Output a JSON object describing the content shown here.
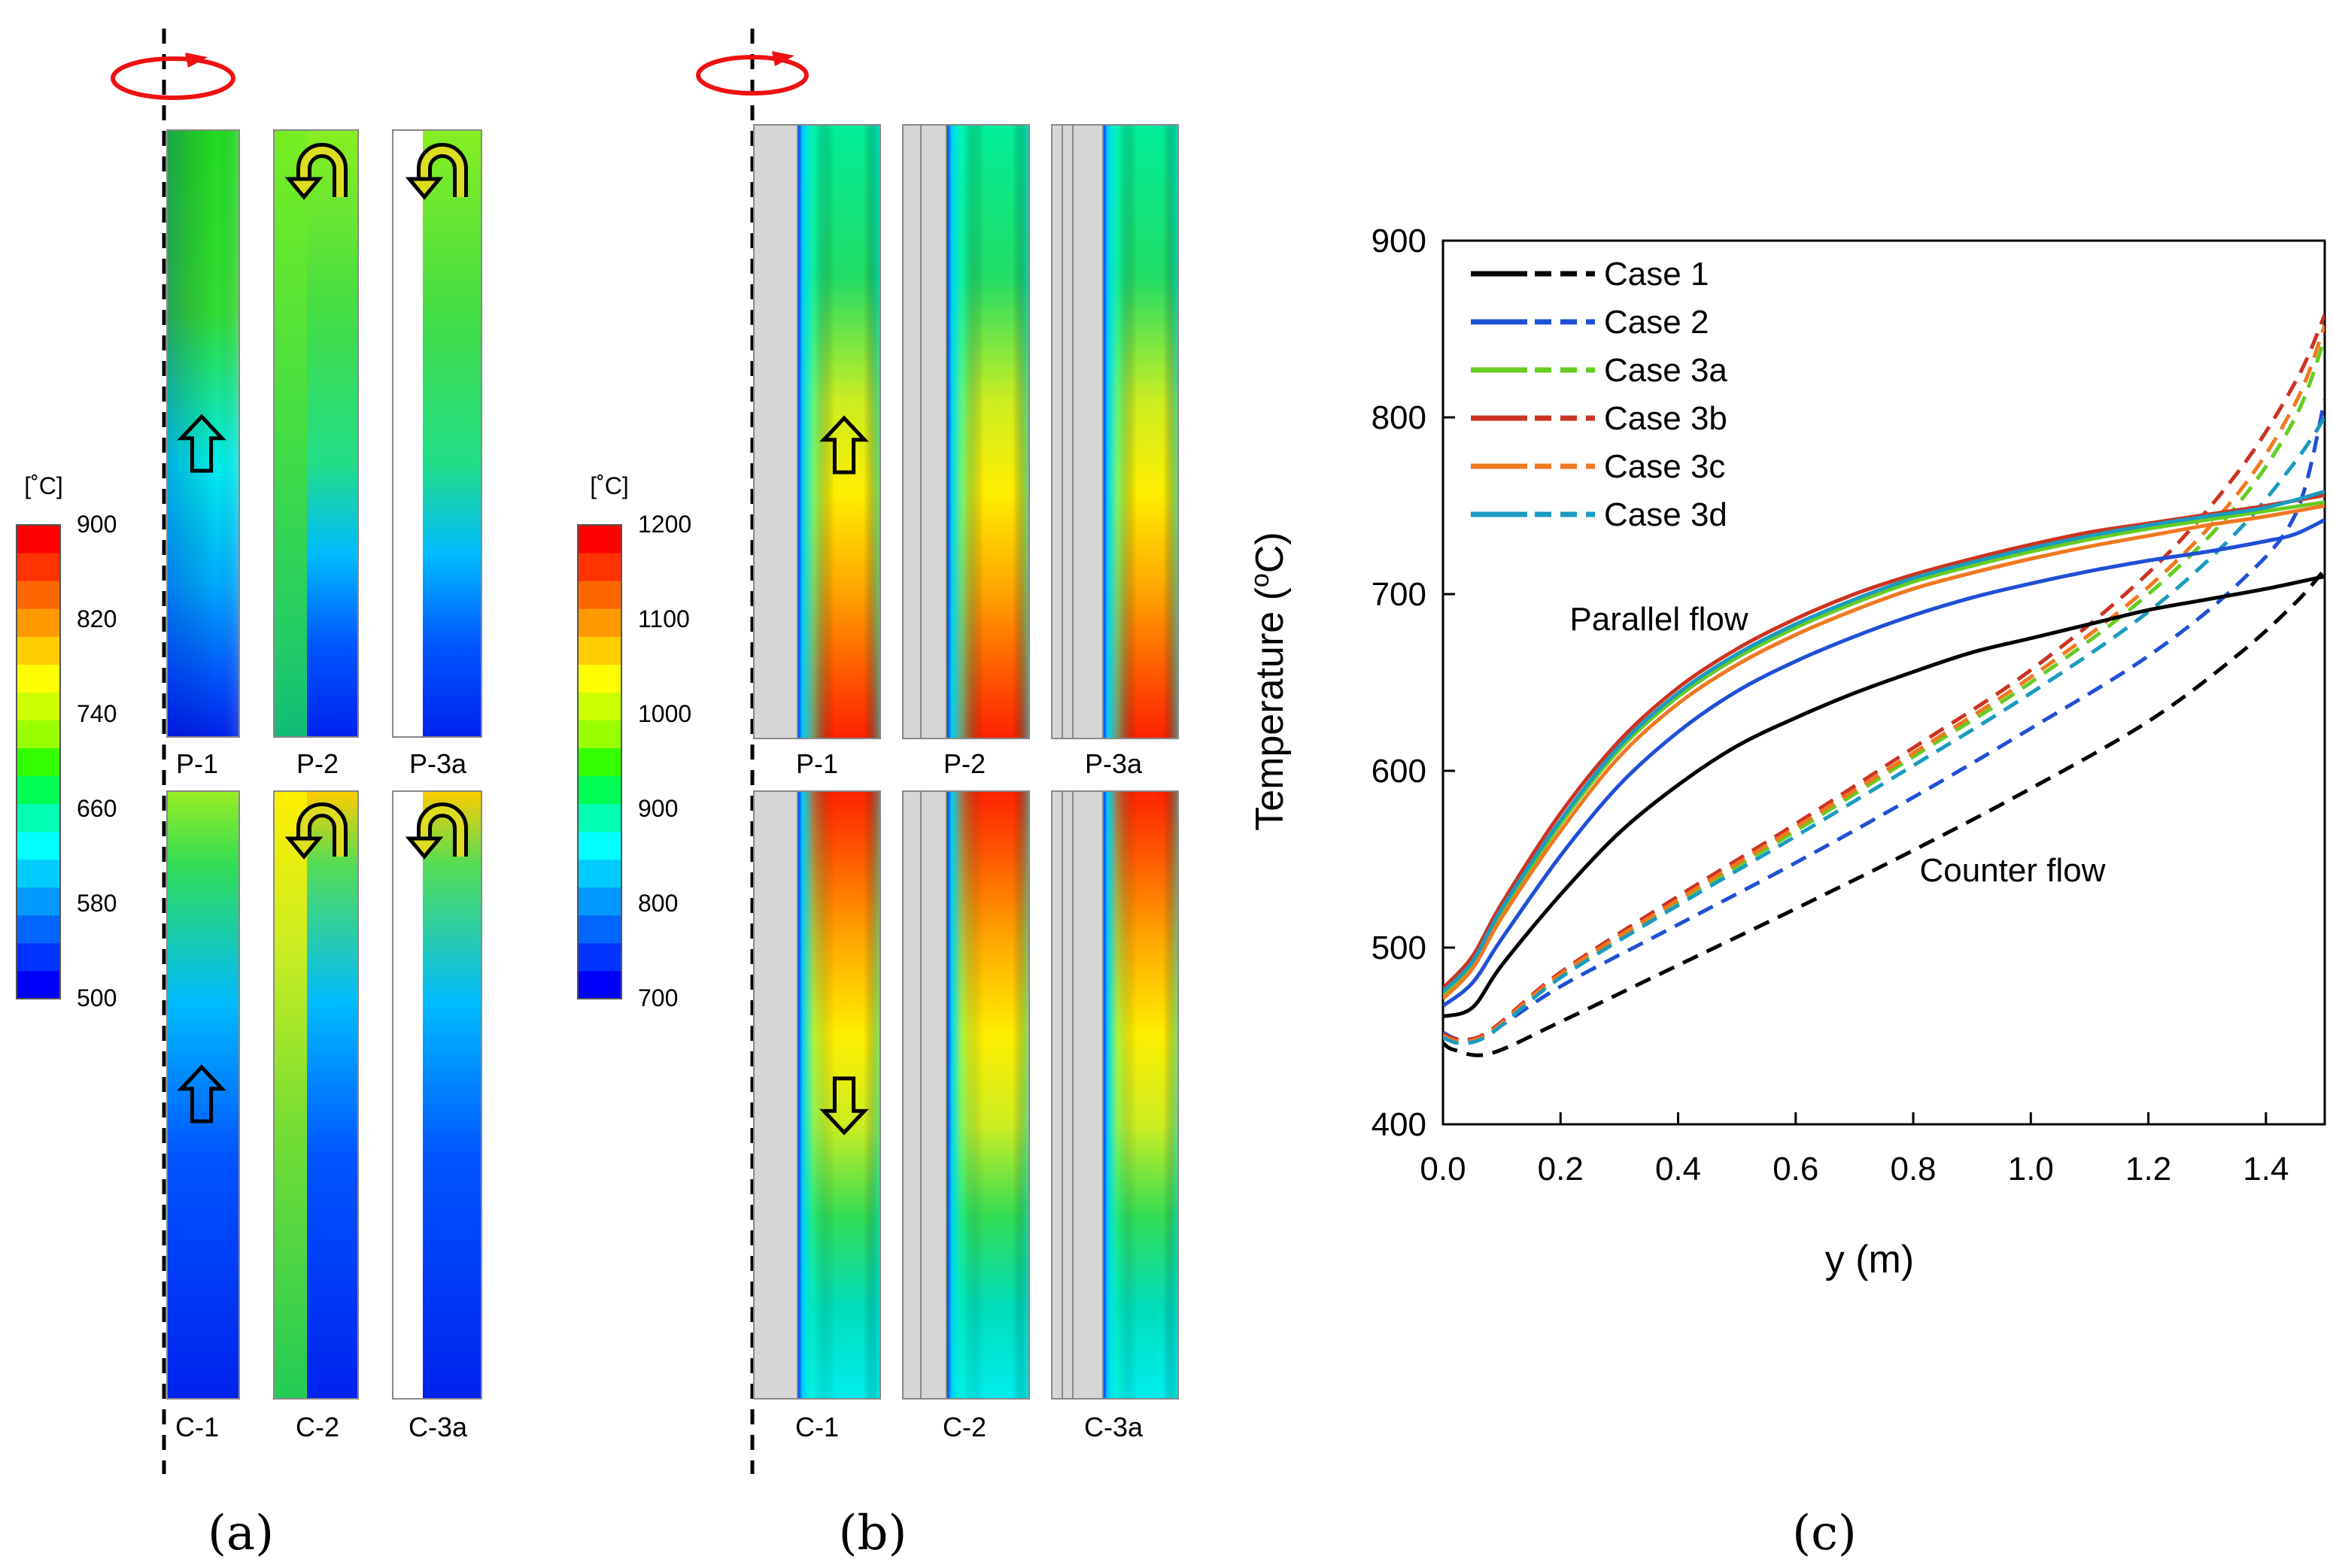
{
  "panels": {
    "a": {
      "tag": "(a)",
      "colorbar": {
        "unit": "[˚C]",
        "ticks": [
          "900",
          "820",
          "740",
          "660",
          "580",
          "500"
        ],
        "min": 500,
        "max": 900
      },
      "top_labels": [
        "P-1",
        "P-2",
        "P-3a"
      ],
      "bottom_labels": [
        "C-1",
        "C-2",
        "C-3a"
      ]
    },
    "b": {
      "tag": "(b)",
      "colorbar": {
        "unit": "[˚C]",
        "ticks": [
          "1200",
          "1100",
          "1000",
          "900",
          "800",
          "700"
        ],
        "min": 700,
        "max": 1200
      },
      "top_labels": [
        "P-1",
        "P-2",
        "P-3a"
      ],
      "bottom_labels": [
        "C-1",
        "C-2",
        "C-3a"
      ]
    },
    "c": {
      "tag": "(c)"
    }
  },
  "palette": [
    "#0000ff",
    "#0033ff",
    "#0066ff",
    "#0099ff",
    "#00ccff",
    "#00ffff",
    "#00ffb2",
    "#00ff55",
    "#33ff00",
    "#99ff00",
    "#ccff00",
    "#ffff00",
    "#ffcc00",
    "#ff9900",
    "#ff6600",
    "#ff3300",
    "#ff0000"
  ],
  "chart_data": {
    "type": "line",
    "title": "",
    "xlabel": "y (m)",
    "ylabel": "Temperature (",
    "ylabel_sup": "o",
    "ylabel_end": "C)",
    "xlim": [
      0.0,
      1.5
    ],
    "ylim": [
      400,
      900
    ],
    "xticks": [
      "0.0",
      "0.2",
      "0.4",
      "0.6",
      "0.8",
      "1.0",
      "1.2",
      "1.4"
    ],
    "yticks": [
      "400",
      "500",
      "600",
      "700",
      "800",
      "900"
    ],
    "legend": "top-left",
    "annotations": {
      "parallel": "Parallel flow",
      "counter": "Counter flow"
    },
    "series": [
      {
        "name": "Case 1",
        "color": "#000000",
        "parallel": [
          [
            0,
            461
          ],
          [
            0.05,
            466
          ],
          [
            0.1,
            490
          ],
          [
            0.2,
            530
          ],
          [
            0.3,
            565
          ],
          [
            0.4,
            592
          ],
          [
            0.5,
            614
          ],
          [
            0.6,
            630
          ],
          [
            0.7,
            644
          ],
          [
            0.8,
            656
          ],
          [
            0.9,
            667
          ],
          [
            1.0,
            675
          ],
          [
            1.1,
            683
          ],
          [
            1.2,
            691
          ],
          [
            1.3,
            697
          ],
          [
            1.4,
            703
          ],
          [
            1.5,
            710
          ]
        ],
        "counter": [
          [
            0,
            446
          ],
          [
            0.02,
            442
          ],
          [
            0.08,
            440
          ],
          [
            0.2,
            458
          ],
          [
            0.4,
            490
          ],
          [
            0.6,
            522
          ],
          [
            0.8,
            555
          ],
          [
            1.0,
            590
          ],
          [
            1.2,
            628
          ],
          [
            1.35,
            665
          ],
          [
            1.45,
            695
          ],
          [
            1.5,
            714
          ]
        ]
      },
      {
        "name": "Case 2",
        "color": "#1f4fd6",
        "parallel": [
          [
            0,
            467
          ],
          [
            0.05,
            480
          ],
          [
            0.1,
            505
          ],
          [
            0.2,
            552
          ],
          [
            0.3,
            592
          ],
          [
            0.4,
            622
          ],
          [
            0.5,
            645
          ],
          [
            0.6,
            662
          ],
          [
            0.7,
            676
          ],
          [
            0.8,
            688
          ],
          [
            0.9,
            698
          ],
          [
            1.0,
            706
          ],
          [
            1.1,
            713
          ],
          [
            1.2,
            719
          ],
          [
            1.3,
            724
          ],
          [
            1.4,
            730
          ],
          [
            1.45,
            734
          ],
          [
            1.5,
            742
          ]
        ],
        "counter": [
          [
            0,
            452
          ],
          [
            0.03,
            448
          ],
          [
            0.08,
            452
          ],
          [
            0.2,
            478
          ],
          [
            0.4,
            513
          ],
          [
            0.6,
            548
          ],
          [
            0.8,
            585
          ],
          [
            1.0,
            624
          ],
          [
            1.2,
            665
          ],
          [
            1.35,
            705
          ],
          [
            1.45,
            745
          ],
          [
            1.5,
            810
          ]
        ]
      },
      {
        "name": "Case 3a",
        "color": "#66cc22",
        "parallel": [
          [
            0,
            473
          ],
          [
            0.05,
            490
          ],
          [
            0.1,
            520
          ],
          [
            0.2,
            570
          ],
          [
            0.3,
            612
          ],
          [
            0.4,
            642
          ],
          [
            0.5,
            664
          ],
          [
            0.6,
            681
          ],
          [
            0.7,
            695
          ],
          [
            0.8,
            707
          ],
          [
            0.9,
            716
          ],
          [
            1.0,
            724
          ],
          [
            1.1,
            731
          ],
          [
            1.2,
            737
          ],
          [
            1.3,
            742
          ],
          [
            1.4,
            747
          ],
          [
            1.5,
            752
          ]
        ],
        "counter": [
          [
            0,
            450
          ],
          [
            0.03,
            447
          ],
          [
            0.08,
            452
          ],
          [
            0.2,
            484
          ],
          [
            0.4,
            526
          ],
          [
            0.6,
            566
          ],
          [
            0.8,
            608
          ],
          [
            1.0,
            650
          ],
          [
            1.2,
            700
          ],
          [
            1.35,
            750
          ],
          [
            1.45,
            800
          ],
          [
            1.5,
            845
          ]
        ]
      },
      {
        "name": "Case 3b",
        "color": "#cc3322",
        "parallel": [
          [
            0,
            477
          ],
          [
            0.05,
            495
          ],
          [
            0.1,
            525
          ],
          [
            0.2,
            576
          ],
          [
            0.3,
            617
          ],
          [
            0.4,
            647
          ],
          [
            0.5,
            669
          ],
          [
            0.6,
            686
          ],
          [
            0.7,
            700
          ],
          [
            0.8,
            711
          ],
          [
            0.9,
            720
          ],
          [
            1.0,
            728
          ],
          [
            1.1,
            735
          ],
          [
            1.2,
            740
          ],
          [
            1.3,
            745
          ],
          [
            1.4,
            750
          ],
          [
            1.5,
            756
          ]
        ],
        "counter": [
          [
            0,
            451
          ],
          [
            0.03,
            448
          ],
          [
            0.08,
            453
          ],
          [
            0.2,
            486
          ],
          [
            0.4,
            529
          ],
          [
            0.6,
            570
          ],
          [
            0.8,
            613
          ],
          [
            1.0,
            657
          ],
          [
            1.2,
            712
          ],
          [
            1.35,
            768
          ],
          [
            1.45,
            820
          ],
          [
            1.5,
            858
          ]
        ]
      },
      {
        "name": "Case 3c",
        "color": "#f07820",
        "parallel": [
          [
            0,
            471
          ],
          [
            0.05,
            488
          ],
          [
            0.1,
            517
          ],
          [
            0.2,
            566
          ],
          [
            0.3,
            608
          ],
          [
            0.4,
            638
          ],
          [
            0.5,
            660
          ],
          [
            0.6,
            677
          ],
          [
            0.7,
            691
          ],
          [
            0.8,
            703
          ],
          [
            0.9,
            712
          ],
          [
            1.0,
            720
          ],
          [
            1.1,
            727
          ],
          [
            1.2,
            733
          ],
          [
            1.3,
            739
          ],
          [
            1.4,
            744
          ],
          [
            1.5,
            750
          ]
        ],
        "counter": [
          [
            0,
            450
          ],
          [
            0.03,
            447
          ],
          [
            0.08,
            452
          ],
          [
            0.2,
            485
          ],
          [
            0.4,
            527
          ],
          [
            0.6,
            568
          ],
          [
            0.8,
            610
          ],
          [
            1.0,
            653
          ],
          [
            1.2,
            704
          ],
          [
            1.35,
            756
          ],
          [
            1.45,
            808
          ],
          [
            1.5,
            852
          ]
        ]
      },
      {
        "name": "Case 3d",
        "color": "#1a9bbf",
        "parallel": [
          [
            0,
            475
          ],
          [
            0.05,
            492
          ],
          [
            0.1,
            522
          ],
          [
            0.2,
            572
          ],
          [
            0.3,
            614
          ],
          [
            0.4,
            644
          ],
          [
            0.5,
            666
          ],
          [
            0.6,
            683
          ],
          [
            0.7,
            697
          ],
          [
            0.8,
            709
          ],
          [
            0.9,
            718
          ],
          [
            1.0,
            726
          ],
          [
            1.1,
            733
          ],
          [
            1.2,
            739
          ],
          [
            1.3,
            744
          ],
          [
            1.4,
            749
          ],
          [
            1.5,
            758
          ]
        ],
        "counter": [
          [
            0,
            449
          ],
          [
            0.03,
            446
          ],
          [
            0.08,
            451
          ],
          [
            0.2,
            483
          ],
          [
            0.4,
            524
          ],
          [
            0.6,
            563
          ],
          [
            0.8,
            603
          ],
          [
            1.0,
            644
          ],
          [
            1.2,
            690
          ],
          [
            1.35,
            735
          ],
          [
            1.45,
            775
          ],
          [
            1.5,
            800
          ]
        ]
      }
    ]
  }
}
